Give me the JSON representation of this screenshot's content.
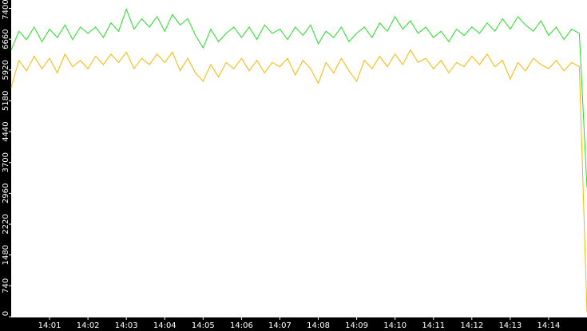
{
  "chart_data": {
    "type": "line",
    "x": [
      0,
      0.2,
      0.4,
      0.6,
      0.8,
      1,
      1.2,
      1.4,
      1.6,
      1.8,
      2,
      2.2,
      2.4,
      2.6,
      2.8,
      3,
      3.2,
      3.4,
      3.6,
      3.8,
      4,
      4.2,
      4.4,
      4.6,
      4.8,
      5,
      5.2,
      5.4,
      5.6,
      5.8,
      6,
      6.2,
      6.4,
      6.6,
      6.8,
      7,
      7.2,
      7.4,
      7.6,
      7.8,
      8,
      8.2,
      8.4,
      8.6,
      8.8,
      9,
      9.2,
      9.4,
      9.6,
      9.8,
      10,
      10.2,
      10.4,
      10.6,
      10.8,
      11,
      11.2,
      11.4,
      11.6,
      11.8,
      12,
      12.2,
      12.4,
      12.6,
      12.8,
      13,
      13.2,
      13.4,
      13.6,
      13.8,
      14,
      14.2,
      14.4,
      14.6,
      14.8,
      15
    ],
    "series": [
      {
        "color": "#22dd22",
        "values": [
          6400,
          6850,
          6650,
          6950,
          6600,
          6900,
          6700,
          7000,
          6650,
          6950,
          6800,
          6950,
          6700,
          7050,
          6850,
          7380,
          6900,
          7150,
          6950,
          7200,
          6850,
          7250,
          7000,
          7150,
          6750,
          6450,
          6900,
          6600,
          6800,
          6950,
          6700,
          6950,
          6650,
          7000,
          6800,
          6900,
          6650,
          6950,
          6750,
          7000,
          6550,
          6850,
          6700,
          6950,
          6600,
          6800,
          6950,
          6700,
          7050,
          6850,
          7200,
          6900,
          7100,
          6800,
          6950,
          6700,
          6850,
          6600,
          6900,
          6750,
          6950,
          6800,
          7050,
          6850,
          7150,
          6900,
          7200,
          7000,
          6850,
          7100,
          6750,
          6950,
          6650,
          6900,
          6800,
          3100
        ]
      },
      {
        "color": "#f0b800",
        "values": [
          5500,
          6150,
          5900,
          6250,
          5950,
          6200,
          5850,
          6300,
          6000,
          6150,
          5950,
          6250,
          6050,
          6300,
          6100,
          6350,
          5950,
          6200,
          6050,
          6300,
          6100,
          6350,
          5900,
          6200,
          5850,
          5650,
          6050,
          5750,
          6100,
          5950,
          6200,
          5900,
          6150,
          5850,
          6100,
          6000,
          6200,
          5800,
          6150,
          5950,
          5600,
          6100,
          5850,
          6200,
          5900,
          5650,
          6150,
          5950,
          6250,
          6000,
          6300,
          6050,
          6400,
          6100,
          6200,
          5950,
          6150,
          5850,
          6100,
          6000,
          6250,
          6050,
          6300,
          6000,
          6150,
          5700,
          6100,
          5900,
          6200,
          6050,
          5950,
          6150,
          5900,
          6100,
          6000,
          100
        ]
      }
    ],
    "xlim": [
      0,
      15
    ],
    "xticks": [
      {
        "value": 1,
        "label": "14:01"
      },
      {
        "value": 2,
        "label": "14:02"
      },
      {
        "value": 3,
        "label": "14:03"
      },
      {
        "value": 4,
        "label": "14:04"
      },
      {
        "value": 5,
        "label": "14:05"
      },
      {
        "value": 6,
        "label": "14:06"
      },
      {
        "value": 7,
        "label": "14:07"
      },
      {
        "value": 8,
        "label": "14:08"
      },
      {
        "value": 9,
        "label": "14:09"
      },
      {
        "value": 10,
        "label": "14:10"
      },
      {
        "value": 11,
        "label": "14:11"
      },
      {
        "value": 12,
        "label": "14:12"
      },
      {
        "value": 13,
        "label": "14:13"
      },
      {
        "value": 14,
        "label": "14:14"
      }
    ],
    "ylim": [
      0,
      7600
    ],
    "yticks": [
      0,
      740,
      1480,
      2220,
      2960,
      3700,
      4440,
      5180,
      5920,
      6660,
      7400
    ]
  }
}
